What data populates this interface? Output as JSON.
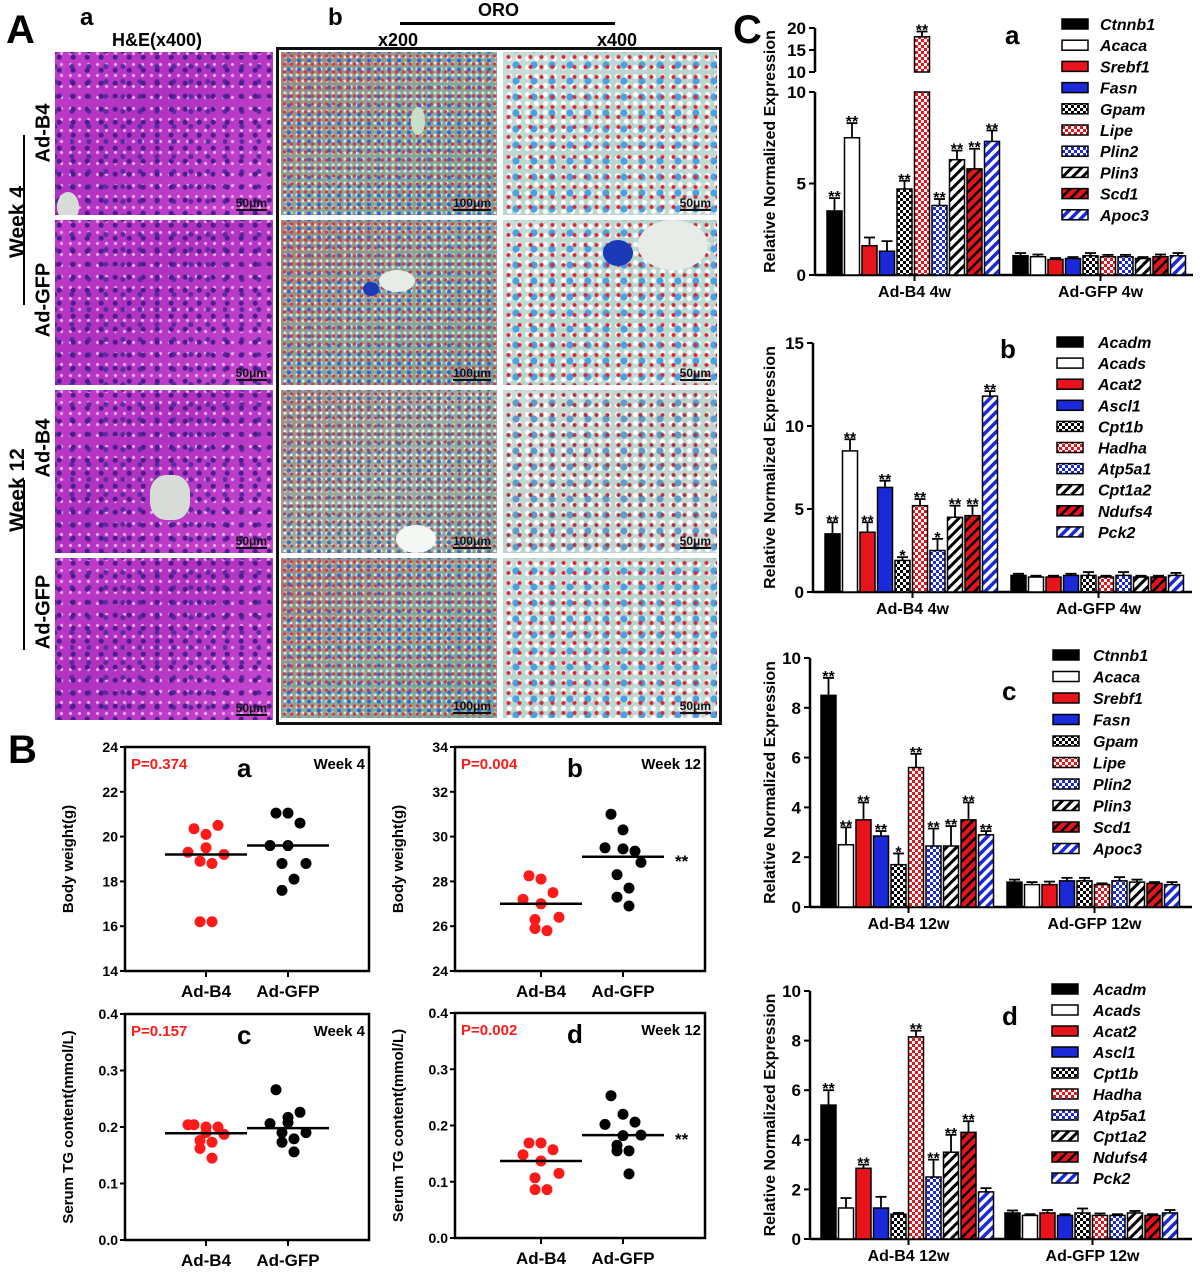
{
  "panel_A": {
    "label": "A",
    "sub_a": "a",
    "sub_b": "b",
    "he_title": "H&E(x400)",
    "oro_title": "ORO",
    "mag_200": "x200",
    "mag_400": "x400",
    "weeks": [
      {
        "label": "Week 4",
        "groups": [
          "Ad-B4",
          "Ad-GFP"
        ]
      },
      {
        "label": "Week 12",
        "groups": [
          "Ad-B4",
          "Ad-GFP"
        ]
      }
    ],
    "scale_he": "50μm",
    "scale_200": "100μm",
    "scale_400": "50μm"
  },
  "panel_B": {
    "label": "B"
  },
  "panel_C": {
    "label": "C"
  },
  "chart_data": [
    {
      "panel": "B",
      "type": "scatter",
      "letter": "a",
      "title": "Week 4",
      "annotation": "P=0.374",
      "ylabel": "Body weight(g)",
      "categories": [
        "Ad-B4",
        "Ad-GFP"
      ],
      "ylim": [
        14,
        24
      ],
      "yticks": [
        14,
        16,
        18,
        20,
        22,
        24
      ],
      "significance": "",
      "series": [
        {
          "color": "#ff1a1a",
          "values": [
            20.35,
            20.1,
            20.5,
            19.3,
            19.5,
            19.2,
            18.9,
            18.8,
            16.2,
            16.2
          ],
          "median": 19.2
        },
        {
          "color": "#000000",
          "values": [
            21.05,
            21.05,
            20.6,
            19.6,
            19.6,
            18.8,
            18.8,
            18.1,
            17.6
          ],
          "median": 19.6
        }
      ]
    },
    {
      "panel": "B",
      "type": "scatter",
      "letter": "b",
      "title": "Week 12",
      "annotation": "P=0.004",
      "ylabel": "Body weight(g)",
      "categories": [
        "Ad-B4",
        "Ad-GFP"
      ],
      "ylim": [
        24,
        34
      ],
      "yticks": [
        24,
        26,
        28,
        30,
        32,
        34
      ],
      "significance": "**",
      "series": [
        {
          "color": "#ff1a1a",
          "values": [
            28.25,
            28.1,
            27.5,
            27.2,
            27.0,
            26.4,
            26.3,
            25.8,
            25.9
          ],
          "median": 27.0
        },
        {
          "color": "#000000",
          "values": [
            31.0,
            30.3,
            29.35,
            29.5,
            29.45,
            28.85,
            28.3,
            27.7,
            27.3,
            26.9
          ],
          "median": 29.1
        }
      ]
    },
    {
      "panel": "B",
      "type": "scatter",
      "letter": "c",
      "title": "Week 4",
      "annotation": "P=0.157",
      "ylabel": "Serum TG content(mmol/L)",
      "categories": [
        "Ad-B4",
        "Ad-GFP"
      ],
      "ylim": [
        0,
        0.4
      ],
      "yticks": [
        0.0,
        0.1,
        0.2,
        0.3,
        0.4
      ],
      "significance": "",
      "series": [
        {
          "color": "#ff1a1a",
          "values": [
            0.204,
            0.2,
            0.2,
            0.204,
            0.19,
            0.187,
            0.176,
            0.173,
            0.162,
            0.145
          ],
          "median": 0.189
        },
        {
          "color": "#000000",
          "values": [
            0.266,
            0.217,
            0.226,
            0.206,
            0.208,
            0.19,
            0.19,
            0.179,
            0.173,
            0.156
          ],
          "median": 0.198
        }
      ]
    },
    {
      "panel": "B",
      "type": "scatter",
      "letter": "d",
      "title": "Week 12",
      "annotation": "P=0.002",
      "ylabel": "Serum TG content(mmol/L)",
      "categories": [
        "Ad-B4",
        "Ad-GFP"
      ],
      "ylim": [
        0,
        0.4
      ],
      "yticks": [
        0.0,
        0.1,
        0.2,
        0.3,
        0.4
      ],
      "significance": "**",
      "series": [
        {
          "color": "#ff1a1a",
          "values": [
            0.169,
            0.169,
            0.157,
            0.148,
            0.137,
            0.115,
            0.107,
            0.086,
            0.086
          ],
          "median": 0.137
        },
        {
          "color": "#000000",
          "values": [
            0.253,
            0.22,
            0.206,
            0.202,
            0.182,
            0.183,
            0.165,
            0.155,
            0.155,
            0.114
          ],
          "median": 0.183
        }
      ]
    },
    {
      "panel": "C",
      "type": "bar",
      "letter": "a",
      "ylabel": "Relative Normalized Expression",
      "categories": [
        "Ad-B4 4w",
        "Ad-GFP 4w"
      ],
      "ylim": [
        0,
        20
      ],
      "axis_break": [
        10,
        10
      ],
      "yticks_lower": [
        0,
        5,
        10
      ],
      "yticks_upper": [
        10,
        15,
        20
      ],
      "series": [
        {
          "name": "Ctnnb1",
          "pattern": "solid-black",
          "values": [
            3.5,
            1.05
          ],
          "errors": [
            0.7,
            0.15
          ],
          "significance": [
            "**",
            ""
          ]
        },
        {
          "name": "Acaca",
          "pattern": "solid-white",
          "values": [
            7.5,
            1.0
          ],
          "errors": [
            0.8,
            0.12
          ],
          "significance": [
            "**",
            ""
          ]
        },
        {
          "name": "Srebf1",
          "pattern": "solid-red",
          "values": [
            1.6,
            0.85
          ],
          "errors": [
            0.45,
            0.08
          ],
          "significance": [
            "",
            ""
          ]
        },
        {
          "name": "Fasn",
          "pattern": "solid-blue",
          "values": [
            1.3,
            0.9
          ],
          "errors": [
            0.55,
            0.08
          ],
          "significance": [
            "",
            ""
          ]
        },
        {
          "name": "Gpam",
          "pattern": "checker-black",
          "values": [
            4.7,
            1.05
          ],
          "errors": [
            0.45,
            0.15
          ],
          "significance": [
            "**",
            ""
          ]
        },
        {
          "name": "Lipe",
          "pattern": "checker-red",
          "values": [
            18,
            1.0
          ],
          "errors": [
            1.2,
            0.1
          ],
          "significance": [
            "**",
            ""
          ]
        },
        {
          "name": "Plin2",
          "pattern": "checker-blue",
          "values": [
            3.8,
            1.0
          ],
          "errors": [
            0.35,
            0.1
          ],
          "significance": [
            "**",
            ""
          ]
        },
        {
          "name": "Plin3",
          "pattern": "stripe-black",
          "values": [
            6.3,
            0.9
          ],
          "errors": [
            0.5,
            0.08
          ],
          "significance": [
            "**",
            ""
          ]
        },
        {
          "name": "Scd1",
          "pattern": "stripe-red",
          "values": [
            5.8,
            1.0
          ],
          "errors": [
            1.1,
            0.12
          ],
          "significance": [
            "**",
            ""
          ]
        },
        {
          "name": "Apoc3",
          "pattern": "stripe-blue",
          "values": [
            7.3,
            1.05
          ],
          "errors": [
            0.6,
            0.15
          ],
          "significance": [
            "**",
            ""
          ]
        }
      ]
    },
    {
      "panel": "C",
      "type": "bar",
      "letter": "b",
      "ylabel": "Relative Normalized Expression",
      "categories": [
        "Ad-B4 4w",
        "Ad-GFP 4w"
      ],
      "ylim": [
        0,
        15
      ],
      "yticks": [
        0,
        5,
        10,
        15
      ],
      "series": [
        {
          "name": "Acadm",
          "pattern": "solid-black",
          "values": [
            3.5,
            1.0
          ],
          "errors": [
            0.7,
            0.1
          ],
          "significance": [
            "**",
            ""
          ]
        },
        {
          "name": "Acads",
          "pattern": "solid-white",
          "values": [
            8.5,
            0.9
          ],
          "errors": [
            0.7,
            0.08
          ],
          "significance": [
            "**",
            ""
          ]
        },
        {
          "name": "Acat2",
          "pattern": "solid-red",
          "values": [
            3.6,
            0.9
          ],
          "errors": [
            0.6,
            0.08
          ],
          "significance": [
            "**",
            ""
          ]
        },
        {
          "name": "Ascl1",
          "pattern": "solid-blue",
          "values": [
            6.3,
            1.0
          ],
          "errors": [
            0.4,
            0.1
          ],
          "significance": [
            "**",
            ""
          ]
        },
        {
          "name": "Cpt1b",
          "pattern": "checker-black",
          "values": [
            1.9,
            1.0
          ],
          "errors": [
            0.2,
            0.2
          ],
          "significance": [
            "*",
            ""
          ]
        },
        {
          "name": "Hadha",
          "pattern": "checker-red",
          "values": [
            5.2,
            0.9
          ],
          "errors": [
            0.4,
            0.08
          ],
          "significance": [
            "**",
            ""
          ]
        },
        {
          "name": "Atp5a1",
          "pattern": "checker-blue",
          "values": [
            2.5,
            1.0
          ],
          "errors": [
            0.7,
            0.2
          ],
          "significance": [
            "*",
            ""
          ]
        },
        {
          "name": "Cpt1a2",
          "pattern": "stripe-black",
          "values": [
            4.5,
            0.9
          ],
          "errors": [
            0.7,
            0.08
          ],
          "significance": [
            "**",
            ""
          ]
        },
        {
          "name": "Ndufs4",
          "pattern": "stripe-red",
          "values": [
            4.6,
            0.9
          ],
          "errors": [
            0.6,
            0.08
          ],
          "significance": [
            "**",
            ""
          ]
        },
        {
          "name": "Pck2",
          "pattern": "stripe-blue",
          "values": [
            11.8,
            1.0
          ],
          "errors": [
            0.3,
            0.15
          ],
          "significance": [
            "**",
            ""
          ]
        }
      ]
    },
    {
      "panel": "C",
      "type": "bar",
      "letter": "c",
      "ylabel": "Relative Normalized Expression",
      "categories": [
        "Ad-B4 12w",
        "Ad-GFP 12w"
      ],
      "ylim": [
        0,
        10
      ],
      "yticks": [
        0,
        2,
        4,
        6,
        8,
        10
      ],
      "series": [
        {
          "name": "Ctnnb1",
          "pattern": "solid-black",
          "values": [
            8.5,
            1.0
          ],
          "errors": [
            0.7,
            0.1
          ],
          "significance": [
            "**",
            ""
          ]
        },
        {
          "name": "Acaca",
          "pattern": "solid-white",
          "values": [
            2.5,
            0.9
          ],
          "errors": [
            0.7,
            0.1
          ],
          "significance": [
            "**",
            ""
          ]
        },
        {
          "name": "Srebf1",
          "pattern": "solid-red",
          "values": [
            3.5,
            0.9
          ],
          "errors": [
            0.7,
            0.12
          ],
          "significance": [
            "**",
            ""
          ]
        },
        {
          "name": "Fasn",
          "pattern": "solid-blue",
          "values": [
            2.85,
            1.05
          ],
          "errors": [
            0.2,
            0.12
          ],
          "significance": [
            "**",
            ""
          ]
        },
        {
          "name": "Gpam",
          "pattern": "checker-black",
          "values": [
            1.7,
            1.05
          ],
          "errors": [
            0.45,
            0.12
          ],
          "significance": [
            "*",
            ""
          ]
        },
        {
          "name": "Lipe",
          "pattern": "checker-red",
          "values": [
            5.6,
            0.9
          ],
          "errors": [
            0.55,
            0.05
          ],
          "significance": [
            "**",
            ""
          ]
        },
        {
          "name": "Plin2",
          "pattern": "checker-blue",
          "values": [
            2.45,
            1.05
          ],
          "errors": [
            0.7,
            0.15
          ],
          "significance": [
            "**",
            ""
          ]
        },
        {
          "name": "Plin3",
          "pattern": "stripe-black",
          "values": [
            2.45,
            1.0
          ],
          "errors": [
            0.8,
            0.1
          ],
          "significance": [
            "**",
            ""
          ]
        },
        {
          "name": "Scd1",
          "pattern": "stripe-red",
          "values": [
            3.5,
            0.95
          ],
          "errors": [
            0.7,
            0.05
          ],
          "significance": [
            "**",
            ""
          ]
        },
        {
          "name": "Apoc3",
          "pattern": "stripe-blue",
          "values": [
            2.9,
            0.9
          ],
          "errors": [
            0.15,
            0.1
          ],
          "significance": [
            "**",
            ""
          ]
        }
      ]
    },
    {
      "panel": "C",
      "type": "bar",
      "letter": "d",
      "ylabel": "Relative Normalized Expression",
      "categories": [
        "Ad-B4 12w",
        "Ad-GFP 12w"
      ],
      "ylim": [
        0,
        10
      ],
      "yticks": [
        0,
        2,
        4,
        6,
        8,
        10
      ],
      "series": [
        {
          "name": "Acadm",
          "pattern": "solid-black",
          "values": [
            5.4,
            1.05
          ],
          "errors": [
            0.6,
            0.1
          ],
          "significance": [
            "**",
            ""
          ]
        },
        {
          "name": "Acads",
          "pattern": "solid-white",
          "values": [
            1.25,
            0.95
          ],
          "errors": [
            0.4,
            0.05
          ],
          "significance": [
            "",
            ""
          ]
        },
        {
          "name": "Acat2",
          "pattern": "solid-red",
          "values": [
            2.85,
            1.05
          ],
          "errors": [
            0.15,
            0.12
          ],
          "significance": [
            "**",
            ""
          ]
        },
        {
          "name": "Ascl1",
          "pattern": "solid-blue",
          "values": [
            1.25,
            0.95
          ],
          "errors": [
            0.45,
            0.05
          ],
          "significance": [
            "",
            ""
          ]
        },
        {
          "name": "Cpt1b",
          "pattern": "checker-black",
          "values": [
            1.0,
            1.05
          ],
          "errors": [
            0.05,
            0.18
          ],
          "significance": [
            "",
            ""
          ]
        },
        {
          "name": "Hadha",
          "pattern": "checker-red",
          "values": [
            8.15,
            0.95
          ],
          "errors": [
            0.25,
            0.08
          ],
          "significance": [
            "**",
            ""
          ]
        },
        {
          "name": "Atp5a1",
          "pattern": "checker-blue",
          "values": [
            2.5,
            0.95
          ],
          "errors": [
            0.7,
            0.05
          ],
          "significance": [
            "**",
            ""
          ]
        },
        {
          "name": "Cpt1a2",
          "pattern": "stripe-black",
          "values": [
            3.5,
            1.05
          ],
          "errors": [
            0.7,
            0.08
          ],
          "significance": [
            "**",
            ""
          ]
        },
        {
          "name": "Ndufs4",
          "pattern": "stripe-red",
          "values": [
            4.3,
            0.95
          ],
          "errors": [
            0.45,
            0.05
          ],
          "significance": [
            "**",
            ""
          ]
        },
        {
          "name": "Pck2",
          "pattern": "stripe-blue",
          "values": [
            1.9,
            1.05
          ],
          "errors": [
            0.15,
            0.12
          ],
          "significance": [
            "",
            ""
          ]
        }
      ]
    }
  ]
}
